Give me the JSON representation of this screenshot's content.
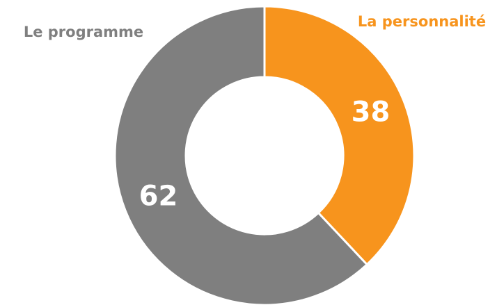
{
  "chart_data": {
    "type": "donut",
    "categories": [
      "La personnalité",
      "Le programme"
    ],
    "values": [
      38,
      62
    ],
    "colors": [
      "#f7941d",
      "#7f7f7f"
    ]
  }
}
